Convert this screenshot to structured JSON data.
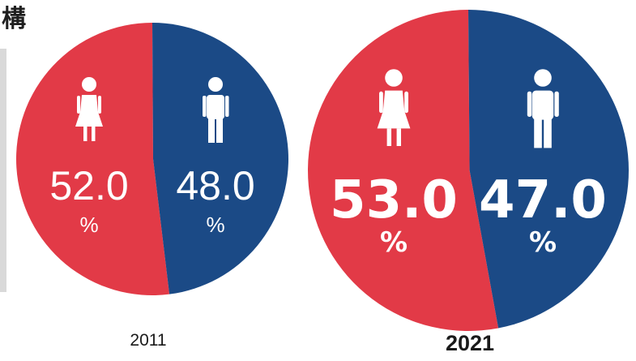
{
  "heading": "構",
  "colors": {
    "female": "#e23a47",
    "male": "#1b4a86",
    "text_on_slice": "#ffffff"
  },
  "chart_data": [
    {
      "type": "pie",
      "label": "2011",
      "slices": [
        {
          "category": "female",
          "value": 52.0,
          "value_text": "52.0",
          "unit": "%",
          "icon": "female-person-icon"
        },
        {
          "category": "male",
          "value": 48.0,
          "value_text": "48.0",
          "unit": "%",
          "icon": "male-person-icon"
        }
      ]
    },
    {
      "type": "pie",
      "label": "2021",
      "slices": [
        {
          "category": "female",
          "value": 53.0,
          "value_text": "53.0",
          "unit": "%",
          "icon": "female-person-icon"
        },
        {
          "category": "male",
          "value": 47.0,
          "value_text": "47.0",
          "unit": "%",
          "icon": "male-person-icon"
        }
      ]
    }
  ]
}
